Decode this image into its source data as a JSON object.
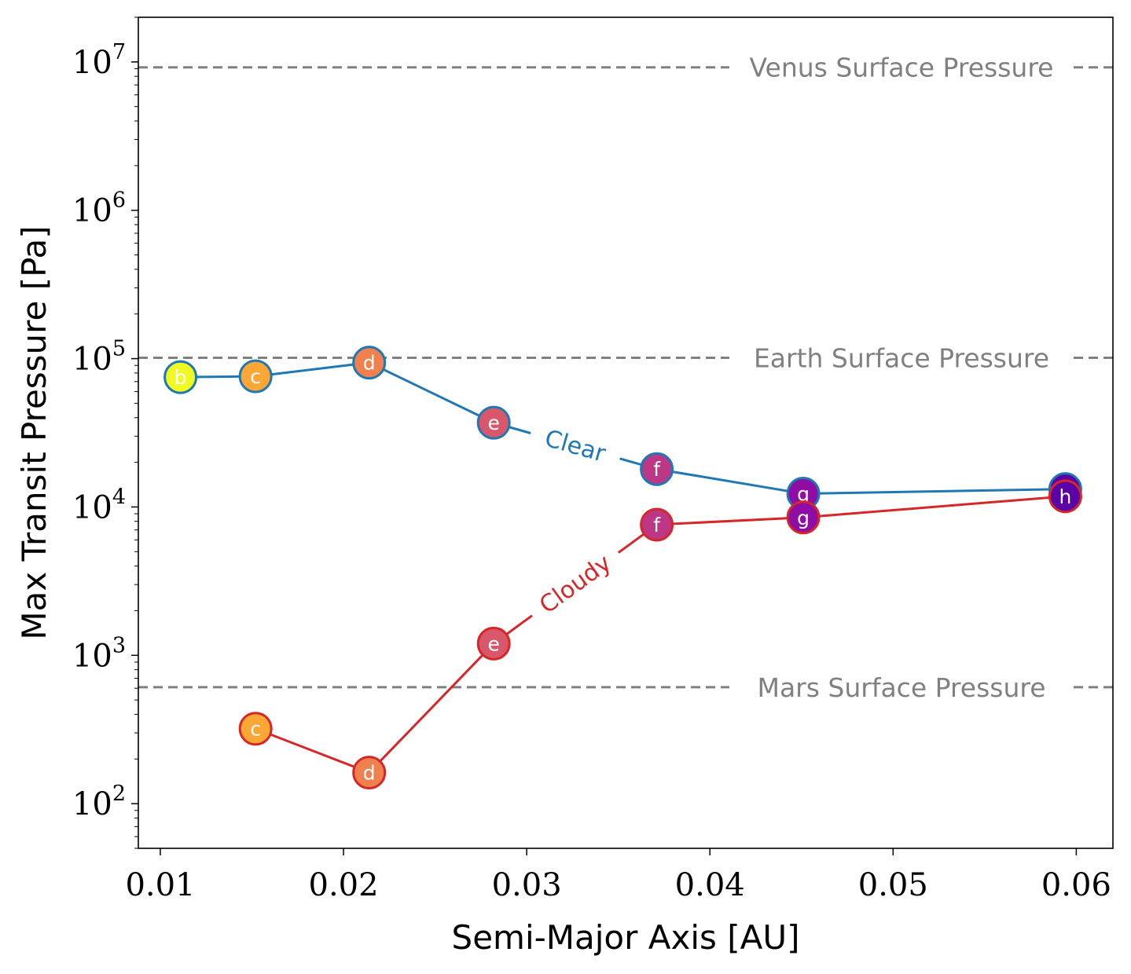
{
  "chart_data": {
    "type": "line",
    "xlabel": "Semi-Major Axis [AU]",
    "ylabel": "Max Transit Pressure [Pa]",
    "xlim": [
      0.0088,
      0.062
    ],
    "ylim": [
      50,
      20000000
    ],
    "yscale": "log",
    "x_ticks": [
      {
        "value": 0.01,
        "label": "0.01"
      },
      {
        "value": 0.02,
        "label": "0.02"
      },
      {
        "value": 0.03,
        "label": "0.03"
      },
      {
        "value": 0.04,
        "label": "0.04"
      },
      {
        "value": 0.05,
        "label": "0.05"
      },
      {
        "value": 0.06,
        "label": "0.06"
      }
    ],
    "y_ticks": [
      {
        "value": 100,
        "base": "10",
        "exp": "2"
      },
      {
        "value": 1000,
        "base": "10",
        "exp": "3"
      },
      {
        "value": 10000,
        "base": "10",
        "exp": "4"
      },
      {
        "value": 100000,
        "base": "10",
        "exp": "5"
      },
      {
        "value": 1000000,
        "base": "10",
        "exp": "6"
      },
      {
        "value": 10000000,
        "base": "10",
        "exp": "7"
      }
    ],
    "reference_lines": [
      {
        "name": "Venus Surface Pressure",
        "value": 9200000,
        "color": "#808080"
      },
      {
        "name": "Earth Surface Pressure",
        "value": 101325,
        "color": "#808080"
      },
      {
        "name": "Mars Surface Pressure",
        "value": 610,
        "color": "#808080"
      }
    ],
    "series": [
      {
        "name": "Clear",
        "color": "#1f77b4",
        "label_between": [
          3,
          4
        ],
        "points": [
          {
            "planet": "b",
            "x": 0.0111,
            "y": 75000,
            "fill": "#f0f921"
          },
          {
            "planet": "c",
            "x": 0.0152,
            "y": 76000,
            "fill": "#fca636"
          },
          {
            "planet": "d",
            "x": 0.0214,
            "y": 94000,
            "fill": "#f0804d"
          },
          {
            "planet": "e",
            "x": 0.0282,
            "y": 37000,
            "fill": "#d8576b"
          },
          {
            "planet": "f",
            "x": 0.0371,
            "y": 18000,
            "fill": "#bd3786"
          },
          {
            "planet": "g",
            "x": 0.0451,
            "y": 12300,
            "fill": "#8f0da4"
          },
          {
            "planet": "h",
            "x": 0.0594,
            "y": 13200,
            "fill": "#5c01a6"
          }
        ]
      },
      {
        "name": "Cloudy",
        "color": "#d62728",
        "label_between": [
          2,
          3
        ],
        "points": [
          {
            "planet": "c",
            "x": 0.0152,
            "y": 320,
            "fill": "#fca636"
          },
          {
            "planet": "d",
            "x": 0.0214,
            "y": 162,
            "fill": "#f0804d"
          },
          {
            "planet": "e",
            "x": 0.0282,
            "y": 1200,
            "fill": "#d8576b"
          },
          {
            "planet": "f",
            "x": 0.0371,
            "y": 7600,
            "fill": "#bd3786"
          },
          {
            "planet": "g",
            "x": 0.0451,
            "y": 8500,
            "fill": "#8f0da4"
          },
          {
            "planet": "h",
            "x": 0.0594,
            "y": 11800,
            "fill": "#5c01a6"
          }
        ]
      }
    ]
  }
}
